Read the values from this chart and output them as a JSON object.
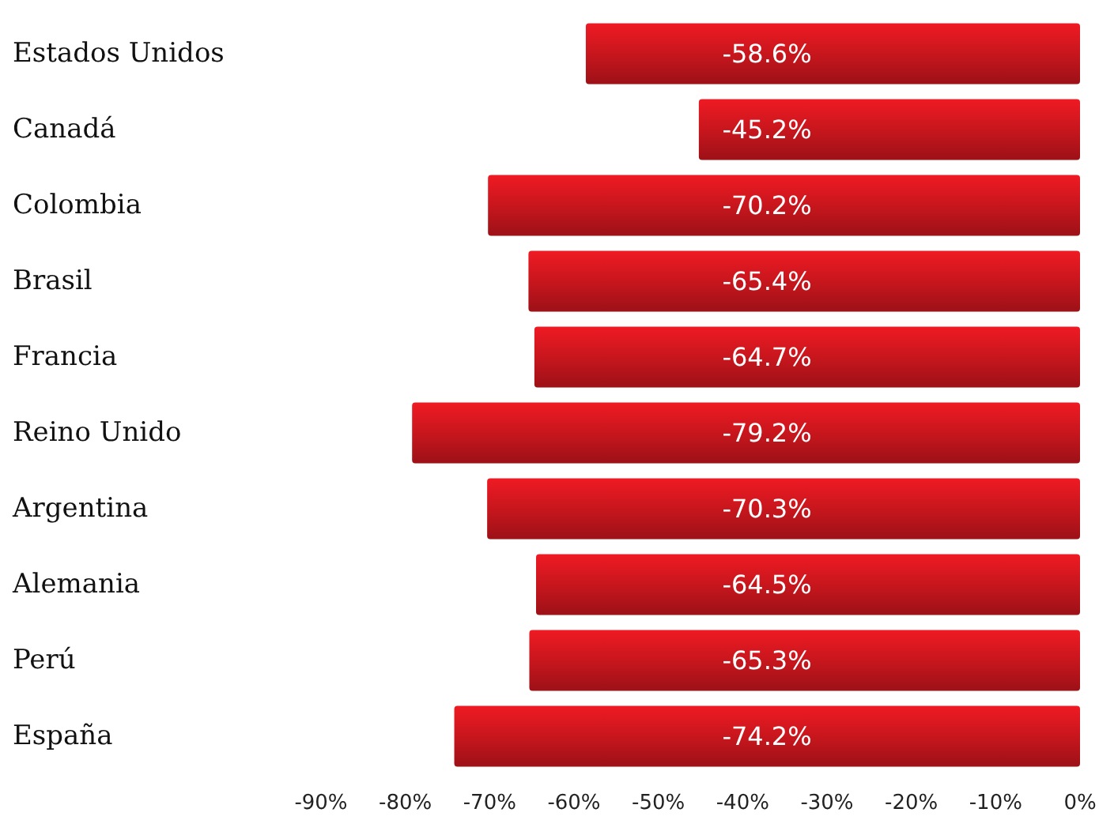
{
  "chart_data": {
    "type": "bar",
    "orientation": "horizontal",
    "categories": [
      "Estados Unidos",
      "Canadá",
      "Colombia",
      "Brasil",
      "Francia",
      "Reino Unido",
      "Argentina",
      "Alemania",
      "Perú",
      "España"
    ],
    "values": [
      -58.6,
      -45.2,
      -70.2,
      -65.4,
      -64.7,
      -79.2,
      -70.3,
      -64.5,
      -65.3,
      -74.2
    ],
    "value_labels": [
      "-58.6%",
      "-45.2%",
      "-70.2%",
      "-65.4%",
      "-64.7%",
      "-79.2%",
      "-70.3%",
      "-64.5%",
      "-65.3%",
      "-74.2%"
    ],
    "color": "#c8161d",
    "xlim": [
      -90,
      0
    ],
    "xticks": [
      {
        "value": -90,
        "label": "-90%"
      },
      {
        "value": -80,
        "label": "-80%"
      },
      {
        "value": -70,
        "label": "-70%"
      },
      {
        "value": -60,
        "label": "-60%"
      },
      {
        "value": -50,
        "label": "-50%"
      },
      {
        "value": -40,
        "label": "-40%"
      },
      {
        "value": -30,
        "label": "-30%"
      },
      {
        "value": -20,
        "label": "-20%"
      },
      {
        "value": -10,
        "label": "-10%"
      },
      {
        "value": 0,
        "label": "0%"
      }
    ]
  }
}
